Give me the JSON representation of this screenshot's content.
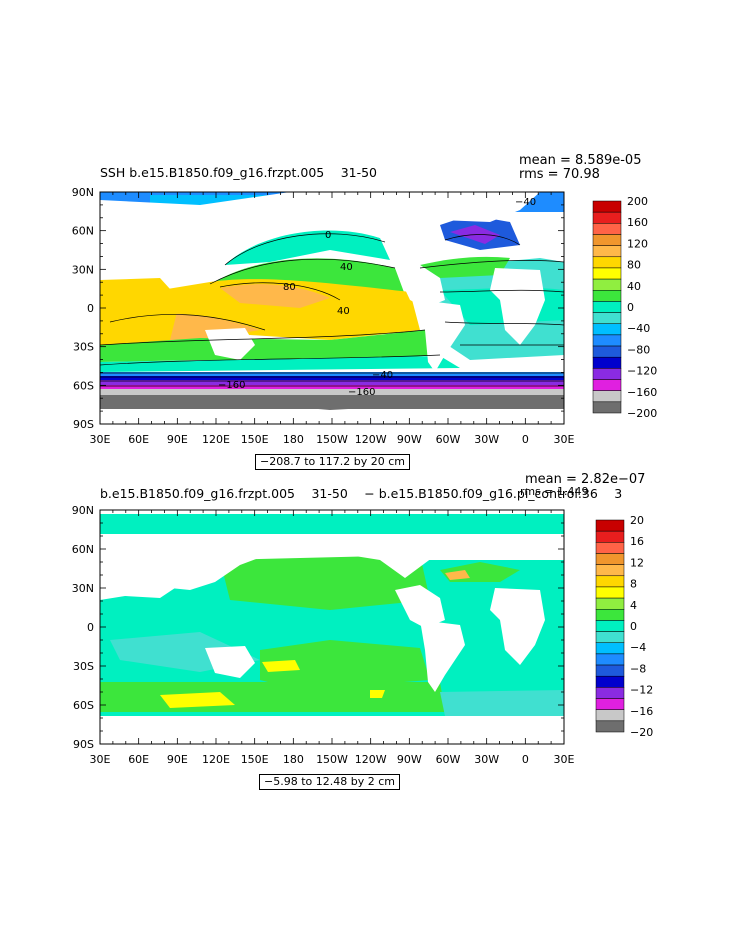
{
  "panels": [
    {
      "title": "SSH b.e15.B1850.f09_g16.frzpt.005  31-50 ",
      "stats": {
        "mean": "mean = 8.589e-05",
        "rms": "rms = 70.98"
      },
      "range_label": "−208.7 to 117.2 by 20 cm",
      "colorbar_labels": [
        "200",
        "160",
        "120",
        "80",
        "40",
        "0",
        "−40",
        "−80",
        "−120",
        "−160",
        "−200"
      ],
      "contour_labels": [
        "80",
        "40",
        "40",
        "0",
        "−160",
        "−160",
        "−40",
        "−40"
      ]
    },
    {
      "title": "b.e15.B1850.f09_g16.frzpt.005  31-50  − b.e15.B1850.f09_g16.pi_control.36  3",
      "stats": {
        "mean": "mean = 2.82e−07",
        "rms": "rms = 1.449"
      },
      "range_label": "−5.98 to 12.48 by 2 cm",
      "colorbar_labels": [
        "20",
        "16",
        "12",
        "8",
        "4",
        "0",
        "−4",
        "−8",
        "−12",
        "−16",
        "−20"
      ]
    }
  ],
  "axes": {
    "xticks": [
      "30E",
      "60E",
      "90E",
      "120E",
      "150E",
      "180",
      "150W",
      "120W",
      "90W",
      "60W",
      "30W",
      "0",
      "30E"
    ],
    "yticks": [
      "90N",
      "60N",
      "30N",
      "0",
      "30S",
      "60S",
      "90S"
    ]
  },
  "chart_data": [
    {
      "type": "heatmap",
      "title": "SSH b.e15.B1850.f09_g16.frzpt.005 31-50",
      "xlabel": "",
      "ylabel": "",
      "x_ticks": [
        "30E",
        "60E",
        "90E",
        "120E",
        "150E",
        "180",
        "150W",
        "120W",
        "90W",
        "60W",
        "30W",
        "0",
        "30E"
      ],
      "y_ticks": [
        "90N",
        "60N",
        "30N",
        "0",
        "30S",
        "60S",
        "90S"
      ],
      "color_levels": [
        -200,
        -160,
        -120,
        -80,
        -40,
        0,
        40,
        80,
        120,
        160,
        200
      ],
      "units": "cm",
      "stats": {
        "mean": 8.589e-05,
        "rms": 70.98,
        "min": -208.7,
        "max": 117.2,
        "interval": 20
      },
      "colors": [
        "#6e6e6e",
        "#c8c8c8",
        "#e020e0",
        "#8a2be2",
        "#0000cd",
        "#1e5adc",
        "#1e8cff",
        "#00bfff",
        "#40e0d0",
        "#00f0c0",
        "#3ce63c",
        "#90ee40",
        "#ffff00",
        "#ffd700",
        "#ffb84a",
        "#f0962d",
        "#ff6347",
        "#e81e1e",
        "#c80000"
      ]
    },
    {
      "type": "heatmap",
      "title": "b.e15.B1850.f09_g16.frzpt.005 31-50 - b.e15.B1850.f09_g16.pi_control.36 3",
      "xlabel": "",
      "ylabel": "",
      "x_ticks": [
        "30E",
        "60E",
        "90E",
        "120E",
        "150E",
        "180",
        "150W",
        "120W",
        "90W",
        "60W",
        "30W",
        "0",
        "30E"
      ],
      "y_ticks": [
        "90N",
        "60N",
        "30N",
        "0",
        "30S",
        "60S",
        "90S"
      ],
      "color_levels": [
        -20,
        -16,
        -12,
        -8,
        -4,
        0,
        4,
        8,
        12,
        16,
        20
      ],
      "units": "cm",
      "stats": {
        "mean": 2.82e-07,
        "rms": 1.449,
        "min": -5.98,
        "max": 12.48,
        "interval": 2
      },
      "colors": [
        "#6e6e6e",
        "#c8c8c8",
        "#e020e0",
        "#8a2be2",
        "#0000cd",
        "#1e5adc",
        "#1e8cff",
        "#00bfff",
        "#40e0d0",
        "#00f0c0",
        "#3ce63c",
        "#90ee40",
        "#ffff00",
        "#ffd700",
        "#ffb84a",
        "#f0962d",
        "#ff6347",
        "#e81e1e",
        "#c80000"
      ]
    }
  ]
}
